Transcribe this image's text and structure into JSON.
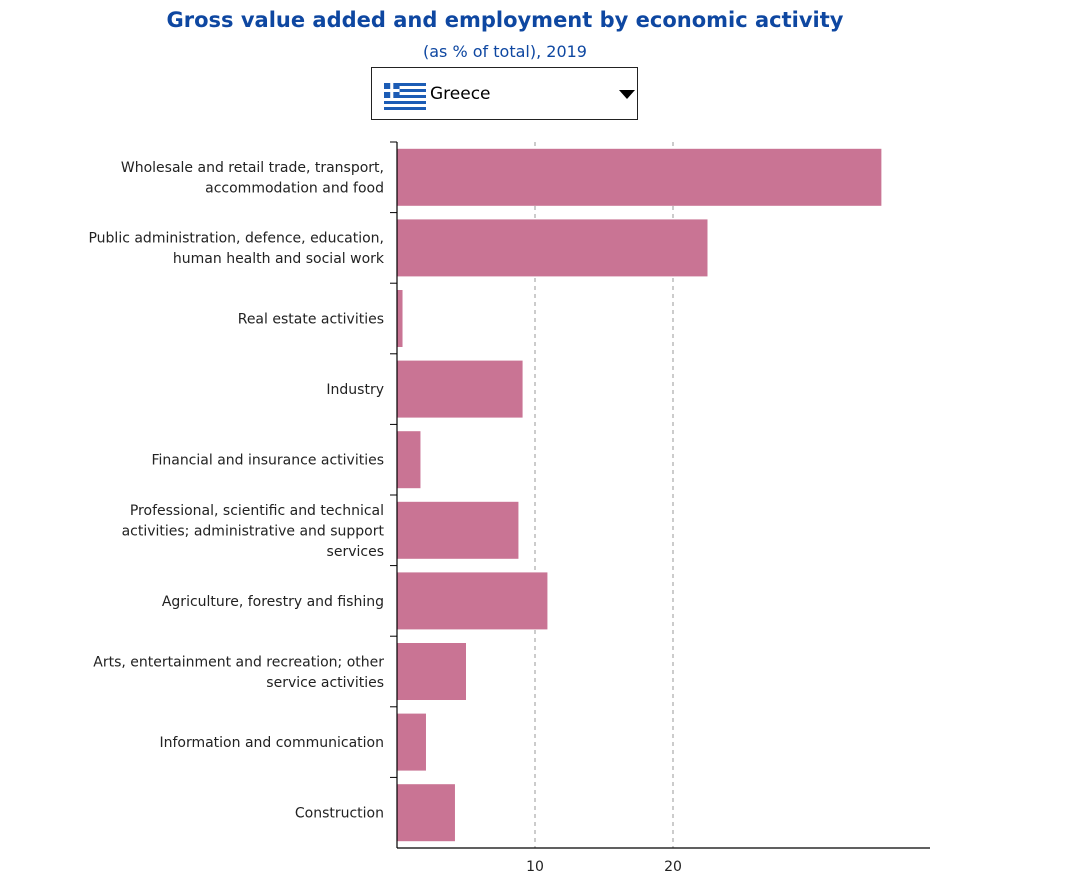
{
  "title": "Gross value added and employment by economic activity",
  "subtitle": "(as % of total), 2019",
  "selector": {
    "value": "Greece",
    "flag_icon": "greece-flag-icon"
  },
  "colors": {
    "bar": "#c97494",
    "title": "#0e47a1",
    "grid": "#999999"
  },
  "chart_data": {
    "type": "bar",
    "orientation": "horizontal",
    "categories": [
      "Wholesale and retail trade, transport, accommodation and food",
      "Public administration, defence, education, human health and social work",
      "Real estate activities",
      "Industry",
      "Financial and insurance activities",
      "Professional, scientific and technical activities; administrative and support services",
      "Agriculture, forestry and fishing",
      "Arts, entertainment and recreation; other service activities",
      "Information and communication",
      "Construction"
    ],
    "category_lines": [
      [
        "Wholesale and retail trade, transport,",
        "accommodation and food"
      ],
      [
        "Public administration, defence, education,",
        "human health and social work"
      ],
      [
        "Real estate activities"
      ],
      [
        "Industry"
      ],
      [
        "Financial and insurance activities"
      ],
      [
        "Professional, scientific and technical",
        "activities; administrative and support",
        "services"
      ],
      [
        "Agriculture, forestry and fishing"
      ],
      [
        "Arts, entertainment and recreation; other",
        "service activities"
      ],
      [
        "Information and communication"
      ],
      [
        "Construction"
      ]
    ],
    "values": [
      35.1,
      22.5,
      0.4,
      9.1,
      1.7,
      8.8,
      10.9,
      5.0,
      2.1,
      4.2
    ],
    "xticks": [
      10,
      20
    ],
    "xlim": [
      0,
      38.5
    ],
    "grid": "vertical dashed"
  }
}
